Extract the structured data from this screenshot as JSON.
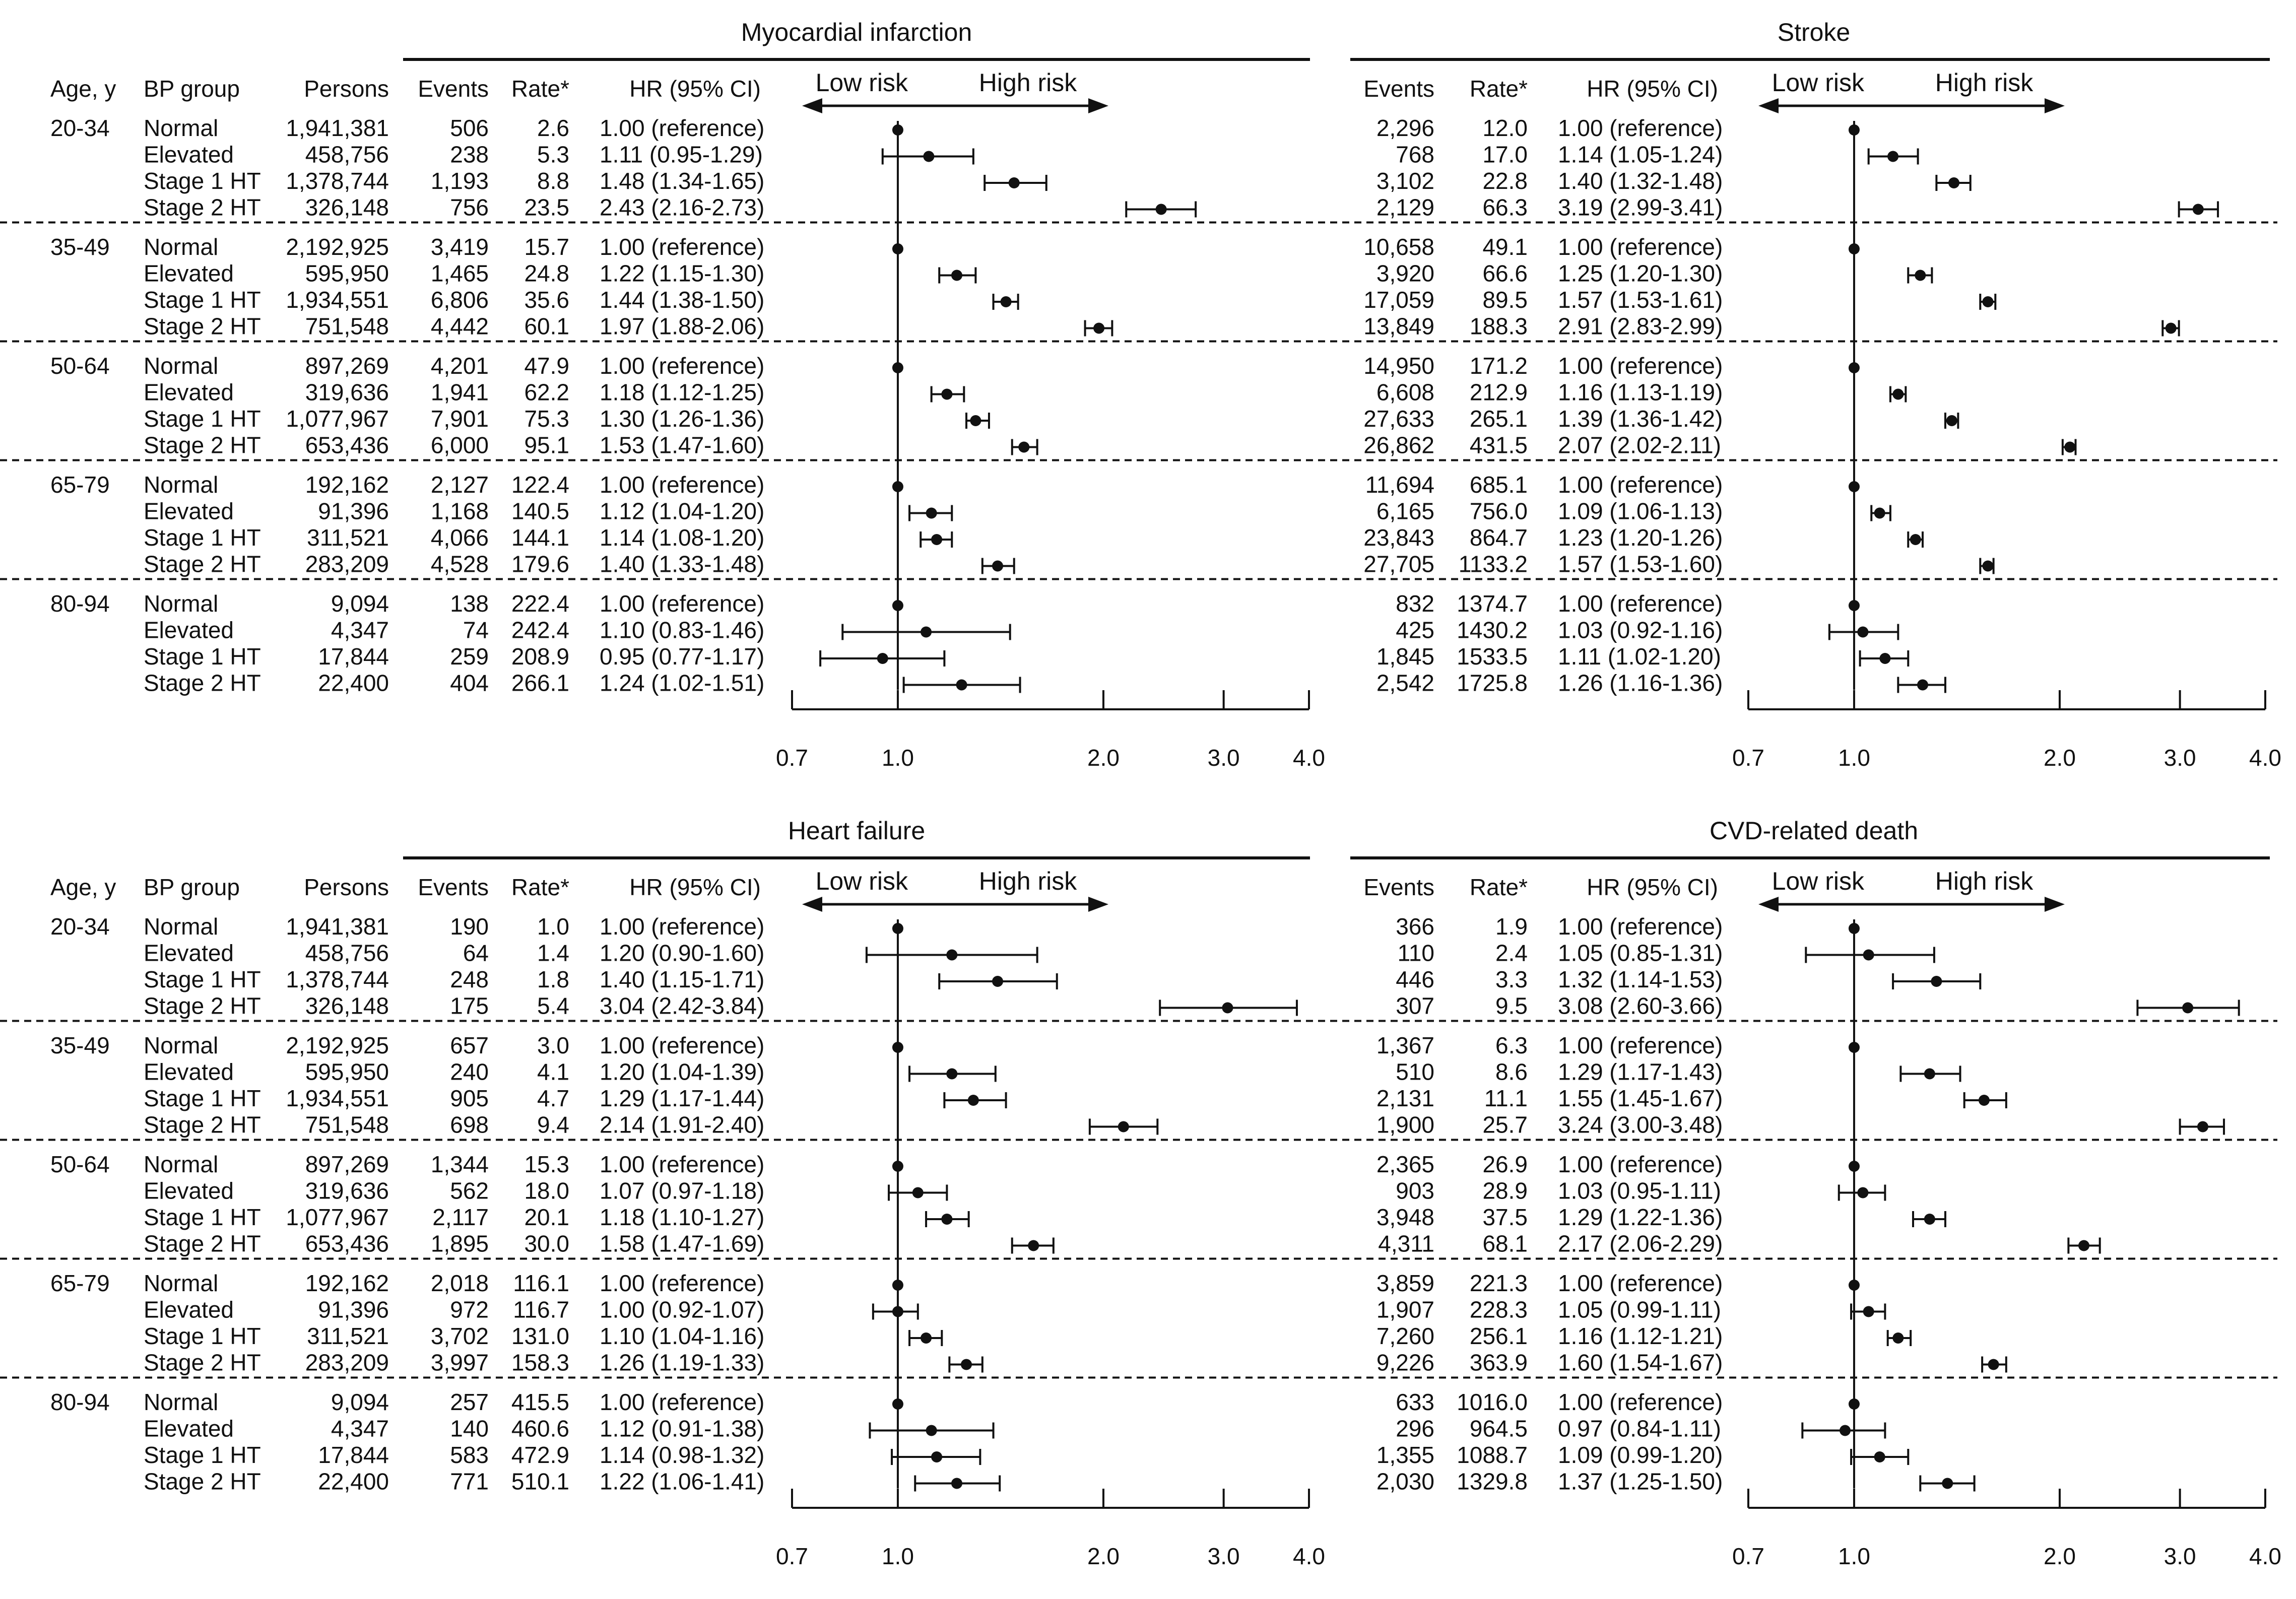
{
  "headers": {
    "age": "Age, y",
    "bp_group": "BP group",
    "persons": "Persons",
    "events": "Events",
    "rate": "Rate*",
    "hr": "HR (95% CI)",
    "low_risk": "Low risk",
    "high_risk": "High risk"
  },
  "age_groups": [
    "20-34",
    "35-49",
    "50-64",
    "65-79",
    "80-94"
  ],
  "bp_groups": [
    "Normal",
    "Elevated",
    "Stage 1 HT",
    "Stage 2 HT"
  ],
  "persons": [
    [
      "1,941,381",
      "458,756",
      "1,378,744",
      "326,148"
    ],
    [
      "2,192,925",
      "595,950",
      "1,934,551",
      "751,548"
    ],
    [
      "897,269",
      "319,636",
      "1,077,967",
      "653,436"
    ],
    [
      "192,162",
      "91,396",
      "311,521",
      "283,209"
    ],
    [
      "9,094",
      "4,347",
      "17,844",
      "22,400"
    ]
  ],
  "chart_data": [
    {
      "type": "forest",
      "title": "Myocardial infarction",
      "xscale": "log",
      "xlim": [
        0.7,
        4.0
      ],
      "xticks": [
        "0.7",
        "1.0",
        "2.0",
        "3.0",
        "4.0"
      ],
      "reference": 1.0,
      "events": [
        "506",
        "238",
        "1,193",
        "756",
        "3,419",
        "1,465",
        "6,806",
        "4,442",
        "4,201",
        "1,941",
        "7,901",
        "6,000",
        "2,127",
        "1,168",
        "4,066",
        "4,528",
        "138",
        "74",
        "259",
        "404"
      ],
      "rates": [
        "2.6",
        "5.3",
        "8.8",
        "23.5",
        "15.7",
        "24.8",
        "35.6",
        "60.1",
        "47.9",
        "62.2",
        "75.3",
        "95.1",
        "122.4",
        "140.5",
        "144.1",
        "179.6",
        "222.4",
        "242.4",
        "208.9",
        "266.1"
      ],
      "hr_text": [
        "1.00 (reference)",
        "1.11 (0.95-1.29)",
        "1.48 (1.34-1.65)",
        "2.43 (2.16-2.73)",
        "1.00 (reference)",
        "1.22 (1.15-1.30)",
        "1.44 (1.38-1.50)",
        "1.97 (1.88-2.06)",
        "1.00 (reference)",
        "1.18 (1.12-1.25)",
        "1.30 (1.26-1.36)",
        "1.53 (1.47-1.60)",
        "1.00 (reference)",
        "1.12 (1.04-1.20)",
        "1.14 (1.08-1.20)",
        "1.40 (1.33-1.48)",
        "1.00 (reference)",
        "1.10 (0.83-1.46)",
        "0.95 (0.77-1.17)",
        "1.24 (1.02-1.51)"
      ],
      "hr": [
        1.0,
        1.11,
        1.48,
        2.43,
        1.0,
        1.22,
        1.44,
        1.97,
        1.0,
        1.18,
        1.3,
        1.53,
        1.0,
        1.12,
        1.14,
        1.4,
        1.0,
        1.1,
        0.95,
        1.24
      ],
      "lo": [
        null,
        0.95,
        1.34,
        2.16,
        null,
        1.15,
        1.38,
        1.88,
        null,
        1.12,
        1.26,
        1.47,
        null,
        1.04,
        1.08,
        1.33,
        null,
        0.83,
        0.77,
        1.02
      ],
      "hi": [
        null,
        1.29,
        1.65,
        2.73,
        null,
        1.3,
        1.5,
        2.06,
        null,
        1.25,
        1.36,
        1.6,
        null,
        1.2,
        1.2,
        1.48,
        null,
        1.46,
        1.17,
        1.51
      ]
    },
    {
      "type": "forest",
      "title": "Stroke",
      "xscale": "log",
      "xlim": [
        0.7,
        4.0
      ],
      "xticks": [
        "0.7",
        "1.0",
        "2.0",
        "3.0",
        "4.0"
      ],
      "reference": 1.0,
      "events": [
        "2,296",
        "768",
        "3,102",
        "2,129",
        "10,658",
        "3,920",
        "17,059",
        "13,849",
        "14,950",
        "6,608",
        "27,633",
        "26,862",
        "11,694",
        "6,165",
        "23,843",
        "27,705",
        "832",
        "425",
        "1,845",
        "2,542"
      ],
      "rates": [
        "12.0",
        "17.0",
        "22.8",
        "66.3",
        "49.1",
        "66.6",
        "89.5",
        "188.3",
        "171.2",
        "212.9",
        "265.1",
        "431.5",
        "685.1",
        "756.0",
        "864.7",
        "1133.2",
        "1374.7",
        "1430.2",
        "1533.5",
        "1725.8"
      ],
      "hr_text": [
        "1.00 (reference)",
        "1.14 (1.05-1.24)",
        "1.40 (1.32-1.48)",
        "3.19 (2.99-3.41)",
        "1.00 (reference)",
        "1.25 (1.20-1.30)",
        "1.57 (1.53-1.61)",
        "2.91 (2.83-2.99)",
        "1.00 (reference)",
        "1.16 (1.13-1.19)",
        "1.39 (1.36-1.42)",
        "2.07 (2.02-2.11)",
        "1.00 (reference)",
        "1.09 (1.06-1.13)",
        "1.23 (1.20-1.26)",
        "1.57 (1.53-1.60)",
        "1.00 (reference)",
        "1.03 (0.92-1.16)",
        "1.11 (1.02-1.20)",
        "1.26 (1.16-1.36)"
      ],
      "hr": [
        1.0,
        1.14,
        1.4,
        3.19,
        1.0,
        1.25,
        1.57,
        2.91,
        1.0,
        1.16,
        1.39,
        2.07,
        1.0,
        1.09,
        1.23,
        1.57,
        1.0,
        1.03,
        1.11,
        1.26
      ],
      "lo": [
        null,
        1.05,
        1.32,
        2.99,
        null,
        1.2,
        1.53,
        2.83,
        null,
        1.13,
        1.36,
        2.02,
        null,
        1.06,
        1.2,
        1.53,
        null,
        0.92,
        1.02,
        1.16
      ],
      "hi": [
        null,
        1.24,
        1.48,
        3.41,
        null,
        1.3,
        1.61,
        2.99,
        null,
        1.19,
        1.42,
        2.11,
        null,
        1.13,
        1.26,
        1.6,
        null,
        1.16,
        1.2,
        1.36
      ]
    },
    {
      "type": "forest",
      "title": "Heart failure",
      "xscale": "log",
      "xlim": [
        0.7,
        4.0
      ],
      "xticks": [
        "0.7",
        "1.0",
        "2.0",
        "3.0",
        "4.0"
      ],
      "reference": 1.0,
      "events": [
        "190",
        "64",
        "248",
        "175",
        "657",
        "240",
        "905",
        "698",
        "1,344",
        "562",
        "2,117",
        "1,895",
        "2,018",
        "972",
        "3,702",
        "3,997",
        "257",
        "140",
        "583",
        "771"
      ],
      "rates": [
        "1.0",
        "1.4",
        "1.8",
        "5.4",
        "3.0",
        "4.1",
        "4.7",
        "9.4",
        "15.3",
        "18.0",
        "20.1",
        "30.0",
        "116.1",
        "116.7",
        "131.0",
        "158.3",
        "415.5",
        "460.6",
        "472.9",
        "510.1"
      ],
      "hr_text": [
        "1.00 (reference)",
        "1.20 (0.90-1.60)",
        "1.40 (1.15-1.71)",
        "3.04 (2.42-3.84)",
        "1.00 (reference)",
        "1.20 (1.04-1.39)",
        "1.29 (1.17-1.44)",
        "2.14 (1.91-2.40)",
        "1.00 (reference)",
        "1.07 (0.97-1.18)",
        "1.18 (1.10-1.27)",
        "1.58 (1.47-1.69)",
        "1.00 (reference)",
        "1.00 (0.92-1.07)",
        "1.10 (1.04-1.16)",
        "1.26 (1.19-1.33)",
        "1.00 (reference)",
        "1.12 (0.91-1.38)",
        "1.14 (0.98-1.32)",
        "1.22 (1.06-1.41)"
      ],
      "hr": [
        1.0,
        1.2,
        1.4,
        3.04,
        1.0,
        1.2,
        1.29,
        2.14,
        1.0,
        1.07,
        1.18,
        1.58,
        1.0,
        1.0,
        1.1,
        1.26,
        1.0,
        1.12,
        1.14,
        1.22
      ],
      "lo": [
        null,
        0.9,
        1.15,
        2.42,
        null,
        1.04,
        1.17,
        1.91,
        null,
        0.97,
        1.1,
        1.47,
        null,
        0.92,
        1.04,
        1.19,
        null,
        0.91,
        0.98,
        1.06
      ],
      "hi": [
        null,
        1.6,
        1.71,
        3.84,
        null,
        1.39,
        1.44,
        2.4,
        null,
        1.18,
        1.27,
        1.69,
        null,
        1.07,
        1.16,
        1.33,
        null,
        1.38,
        1.32,
        1.41
      ]
    },
    {
      "type": "forest",
      "title": "CVD-related death",
      "xscale": "log",
      "xlim": [
        0.7,
        4.0
      ],
      "xticks": [
        "0.7",
        "1.0",
        "2.0",
        "3.0",
        "4.0"
      ],
      "reference": 1.0,
      "events": [
        "366",
        "110",
        "446",
        "307",
        "1,367",
        "510",
        "2,131",
        "1,900",
        "2,365",
        "903",
        "3,948",
        "4,311",
        "3,859",
        "1,907",
        "7,260",
        "9,226",
        "633",
        "296",
        "1,355",
        "2,030"
      ],
      "rates": [
        "1.9",
        "2.4",
        "3.3",
        "9.5",
        "6.3",
        "8.6",
        "11.1",
        "25.7",
        "26.9",
        "28.9",
        "37.5",
        "68.1",
        "221.3",
        "228.3",
        "256.1",
        "363.9",
        "1016.0",
        "964.5",
        "1088.7",
        "1329.8"
      ],
      "hr_text": [
        "1.00 (reference)",
        "1.05 (0.85-1.31)",
        "1.32 (1.14-1.53)",
        "3.08 (2.60-3.66)",
        "1.00 (reference)",
        "1.29 (1.17-1.43)",
        "1.55 (1.45-1.67)",
        "3.24 (3.00-3.48)",
        "1.00 (reference)",
        "1.03 (0.95-1.11)",
        "1.29 (1.22-1.36)",
        "2.17 (2.06-2.29)",
        "1.00 (reference)",
        "1.05 (0.99-1.11)",
        "1.16 (1.12-1.21)",
        "1.60 (1.54-1.67)",
        "1.00 (reference)",
        "0.97 (0.84-1.11)",
        "1.09 (0.99-1.20)",
        "1.37 (1.25-1.50)"
      ],
      "hr": [
        1.0,
        1.05,
        1.32,
        3.08,
        1.0,
        1.29,
        1.55,
        3.24,
        1.0,
        1.03,
        1.29,
        2.17,
        1.0,
        1.05,
        1.16,
        1.6,
        1.0,
        0.97,
        1.09,
        1.37
      ],
      "lo": [
        null,
        0.85,
        1.14,
        2.6,
        null,
        1.17,
        1.45,
        3.0,
        null,
        0.95,
        1.22,
        2.06,
        null,
        0.99,
        1.12,
        1.54,
        null,
        0.84,
        0.99,
        1.25
      ],
      "hi": [
        null,
        1.31,
        1.53,
        3.66,
        null,
        1.43,
        1.67,
        3.48,
        null,
        1.11,
        1.36,
        2.29,
        null,
        1.11,
        1.21,
        1.67,
        null,
        1.11,
        1.2,
        1.5
      ]
    }
  ]
}
